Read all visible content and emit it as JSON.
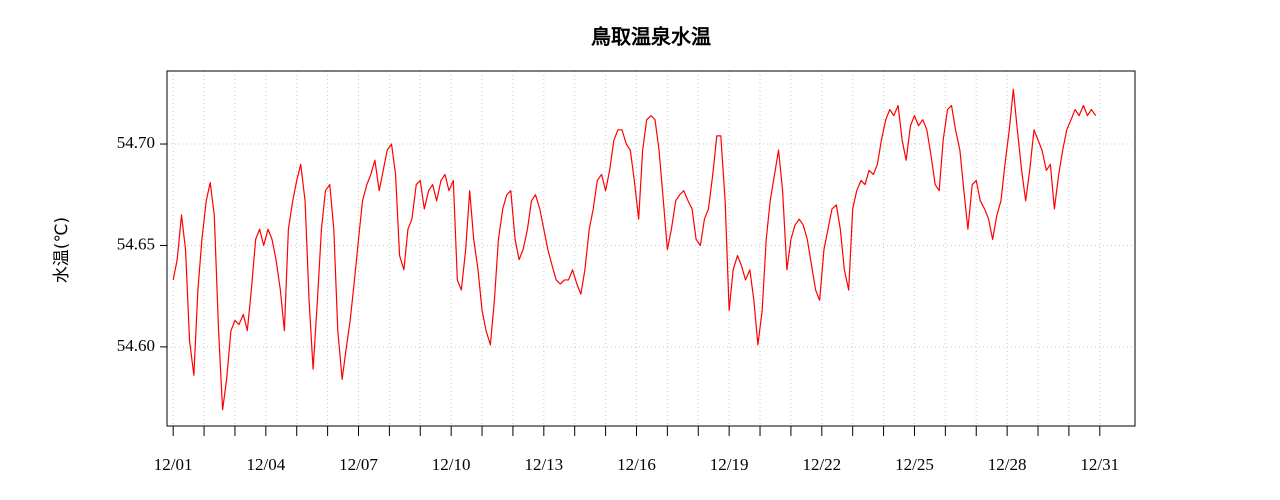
{
  "chart_data": {
    "type": "line",
    "title": "鳥取温泉水温",
    "y_label": "水温(℃)",
    "x": [
      1,
      1.13,
      1.27,
      1.4,
      1.53,
      1.67,
      1.8,
      1.93,
      2.07,
      2.2,
      2.33,
      2.47,
      2.6,
      2.73,
      2.87,
      3,
      3.13,
      3.27,
      3.4,
      3.53,
      3.67,
      3.8,
      3.93,
      4.07,
      4.2,
      4.33,
      4.47,
      4.6,
      4.73,
      4.87,
      5,
      5.13,
      5.27,
      5.4,
      5.53,
      5.67,
      5.8,
      5.93,
      6.07,
      6.2,
      6.33,
      6.47,
      6.6,
      6.73,
      6.87,
      7,
      7.13,
      7.27,
      7.4,
      7.53,
      7.67,
      7.8,
      7.93,
      8.07,
      8.2,
      8.33,
      8.47,
      8.6,
      8.73,
      8.87,
      9,
      9.13,
      9.27,
      9.4,
      9.53,
      9.67,
      9.8,
      9.93,
      10.07,
      10.2,
      10.33,
      10.47,
      10.6,
      10.73,
      10.87,
      11,
      11.13,
      11.27,
      11.4,
      11.53,
      11.67,
      11.8,
      11.93,
      12.07,
      12.2,
      12.33,
      12.47,
      12.6,
      12.73,
      12.87,
      13,
      13.13,
      13.27,
      13.4,
      13.53,
      13.67,
      13.8,
      13.93,
      14.07,
      14.2,
      14.33,
      14.47,
      14.6,
      14.73,
      14.87,
      15,
      15.13,
      15.27,
      15.4,
      15.53,
      15.67,
      15.8,
      15.93,
      16.07,
      16.2,
      16.33,
      16.47,
      16.6,
      16.73,
      16.87,
      17,
      17.13,
      17.27,
      17.4,
      17.53,
      17.67,
      17.8,
      17.93,
      18.07,
      18.2,
      18.33,
      18.47,
      18.6,
      18.73,
      18.87,
      19,
      19.13,
      19.27,
      19.4,
      19.53,
      19.67,
      19.8,
      19.93,
      20.07,
      20.2,
      20.33,
      20.47,
      20.6,
      20.73,
      20.87,
      21,
      21.13,
      21.27,
      21.4,
      21.53,
      21.67,
      21.8,
      21.93,
      22.07,
      22.2,
      22.33,
      22.47,
      22.6,
      22.73,
      22.87,
      23,
      23.13,
      23.27,
      23.4,
      23.53,
      23.67,
      23.8,
      23.93,
      24.07,
      24.2,
      24.33,
      24.47,
      24.6,
      24.73,
      24.87,
      25,
      25.13,
      25.27,
      25.4,
      25.53,
      25.67,
      25.8,
      25.93,
      26.07,
      26.2,
      26.33,
      26.47,
      26.6,
      26.73,
      26.87,
      27,
      27.13,
      27.27,
      27.4,
      27.53,
      27.67,
      27.8,
      27.93,
      28.07,
      28.2,
      28.33,
      28.47,
      28.6,
      28.73,
      28.87,
      29,
      29.13,
      29.27,
      29.4,
      29.53,
      29.67,
      29.8,
      29.93,
      30.07,
      30.2,
      30.33,
      30.47,
      30.6,
      30.73,
      30.87
    ],
    "series": [
      {
        "color": "#ff0000",
        "values": [
          54.633,
          54.643,
          54.665,
          54.648,
          54.603,
          54.586,
          54.628,
          54.653,
          54.672,
          54.681,
          54.665,
          54.608,
          54.569,
          54.584,
          54.608,
          54.613,
          54.611,
          54.616,
          54.608,
          54.628,
          54.653,
          54.658,
          54.65,
          54.658,
          54.653,
          54.643,
          54.628,
          54.608,
          54.658,
          54.672,
          54.682,
          54.69,
          54.672,
          54.623,
          54.589,
          54.623,
          54.658,
          54.677,
          54.68,
          54.658,
          54.608,
          54.584,
          54.599,
          54.613,
          54.633,
          54.653,
          54.672,
          54.68,
          54.685,
          54.692,
          54.677,
          54.687,
          54.697,
          54.7,
          54.685,
          54.645,
          54.638,
          54.658,
          54.663,
          54.68,
          54.682,
          54.668,
          54.677,
          54.68,
          54.672,
          54.682,
          54.685,
          54.677,
          54.682,
          54.633,
          54.628,
          54.648,
          54.677,
          54.653,
          54.638,
          54.618,
          54.608,
          54.601,
          54.623,
          54.653,
          54.668,
          54.675,
          54.677,
          54.653,
          54.643,
          54.648,
          54.658,
          54.672,
          54.675,
          54.668,
          54.658,
          54.648,
          54.64,
          54.633,
          54.631,
          54.633,
          54.633,
          54.638,
          54.631,
          54.626,
          54.638,
          54.658,
          54.668,
          54.682,
          54.685,
          54.677,
          54.687,
          54.702,
          54.707,
          54.707,
          54.7,
          54.697,
          54.682,
          54.663,
          54.697,
          54.712,
          54.714,
          54.712,
          54.697,
          54.672,
          54.648,
          54.658,
          54.672,
          54.675,
          54.677,
          54.672,
          54.668,
          54.653,
          54.65,
          54.663,
          54.668,
          54.685,
          54.704,
          54.704,
          54.672,
          54.618,
          54.638,
          54.645,
          54.64,
          54.633,
          54.638,
          54.623,
          54.601,
          54.618,
          54.653,
          54.672,
          54.685,
          54.697,
          54.677,
          54.638,
          54.653,
          54.66,
          54.663,
          54.66,
          54.653,
          54.64,
          54.628,
          54.623,
          54.648,
          54.658,
          54.668,
          54.67,
          54.658,
          54.638,
          54.628,
          54.668,
          54.677,
          54.682,
          54.68,
          54.687,
          54.685,
          54.69,
          54.702,
          54.712,
          54.717,
          54.714,
          54.719,
          54.702,
          54.692,
          54.709,
          54.714,
          54.709,
          54.712,
          54.707,
          54.695,
          54.68,
          54.677,
          54.702,
          54.717,
          54.719,
          54.707,
          54.697,
          54.677,
          54.658,
          54.68,
          54.682,
          54.672,
          54.668,
          54.663,
          54.653,
          54.665,
          54.672,
          54.69,
          54.707,
          54.727,
          54.707,
          54.687,
          54.672,
          54.687,
          54.707,
          54.702,
          54.697,
          54.687,
          54.69,
          54.668,
          54.685,
          54.697,
          54.707,
          54.712,
          54.717,
          54.714,
          54.719,
          54.714,
          54.717,
          54.714
        ]
      }
    ],
    "xlim": [
      0.8,
      32.14
    ],
    "xticks": [
      {
        "value": 1,
        "label": "12/01"
      },
      {
        "value": 4,
        "label": "12/04"
      },
      {
        "value": 7,
        "label": "12/07"
      },
      {
        "value": 10,
        "label": "12/10"
      },
      {
        "value": 13,
        "label": "12/13"
      },
      {
        "value": 16,
        "label": "12/16"
      },
      {
        "value": 19,
        "label": "12/19"
      },
      {
        "value": 22,
        "label": "12/22"
      },
      {
        "value": 25,
        "label": "12/25"
      },
      {
        "value": 28,
        "label": "12/28"
      },
      {
        "value": 31,
        "label": "12/31"
      }
    ],
    "xminorticks": [
      2,
      3,
      5,
      6,
      8,
      9,
      11,
      12,
      14,
      15,
      17,
      18,
      20,
      21,
      23,
      24,
      26,
      27,
      29,
      30
    ],
    "ylim": [
      54.561,
      54.736
    ],
    "yticks": [
      {
        "value": 54.6,
        "label": "54.60"
      },
      {
        "value": 54.65,
        "label": "54.65"
      },
      {
        "value": 54.7,
        "label": "54.70"
      }
    ],
    "grid": true
  }
}
